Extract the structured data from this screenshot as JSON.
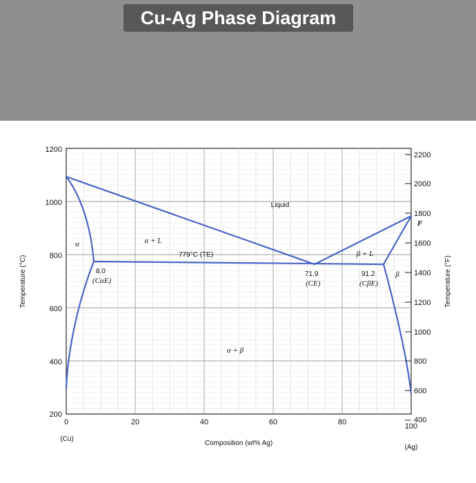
{
  "title": "Cu-Ag Phase Diagram",
  "colors": {
    "background_band": "#8f8f92",
    "title_bg": "#58585a",
    "boundary_line": "#4a62c6"
  },
  "axes": {
    "left_label": "Temperature (°C)",
    "right_label": "Temperature (°F)",
    "bottom_label": "Composition (wt% Ag)",
    "left_end_label": "(Cu)",
    "right_end_label": "(Ag)",
    "x_ticks": [
      "0",
      "20",
      "40",
      "60",
      "80",
      "100"
    ],
    "y_left_ticks": [
      "200",
      "400",
      "600",
      "800",
      "1000",
      "1200"
    ],
    "y_right_ticks": [
      "400",
      "600",
      "800",
      "1000",
      "1200",
      "1400",
      "1600",
      "1800",
      "2000",
      "2200"
    ]
  },
  "regions": {
    "liquid": "Liquid",
    "alpha": "α",
    "alpha_l": "α + L",
    "beta_l": "β + L",
    "beta": "β",
    "alpha_beta": "α + β",
    "f_point": "F"
  },
  "annotations": {
    "eutectic_temp": "779°C (TE)",
    "alpha_e_value": "8.0",
    "alpha_e_label": "(CαE)",
    "eutectic_comp": "71.9",
    "eutectic_comp_label": "(CE)",
    "beta_e_value": "91.2",
    "beta_e_label": "(CβE)"
  }
}
